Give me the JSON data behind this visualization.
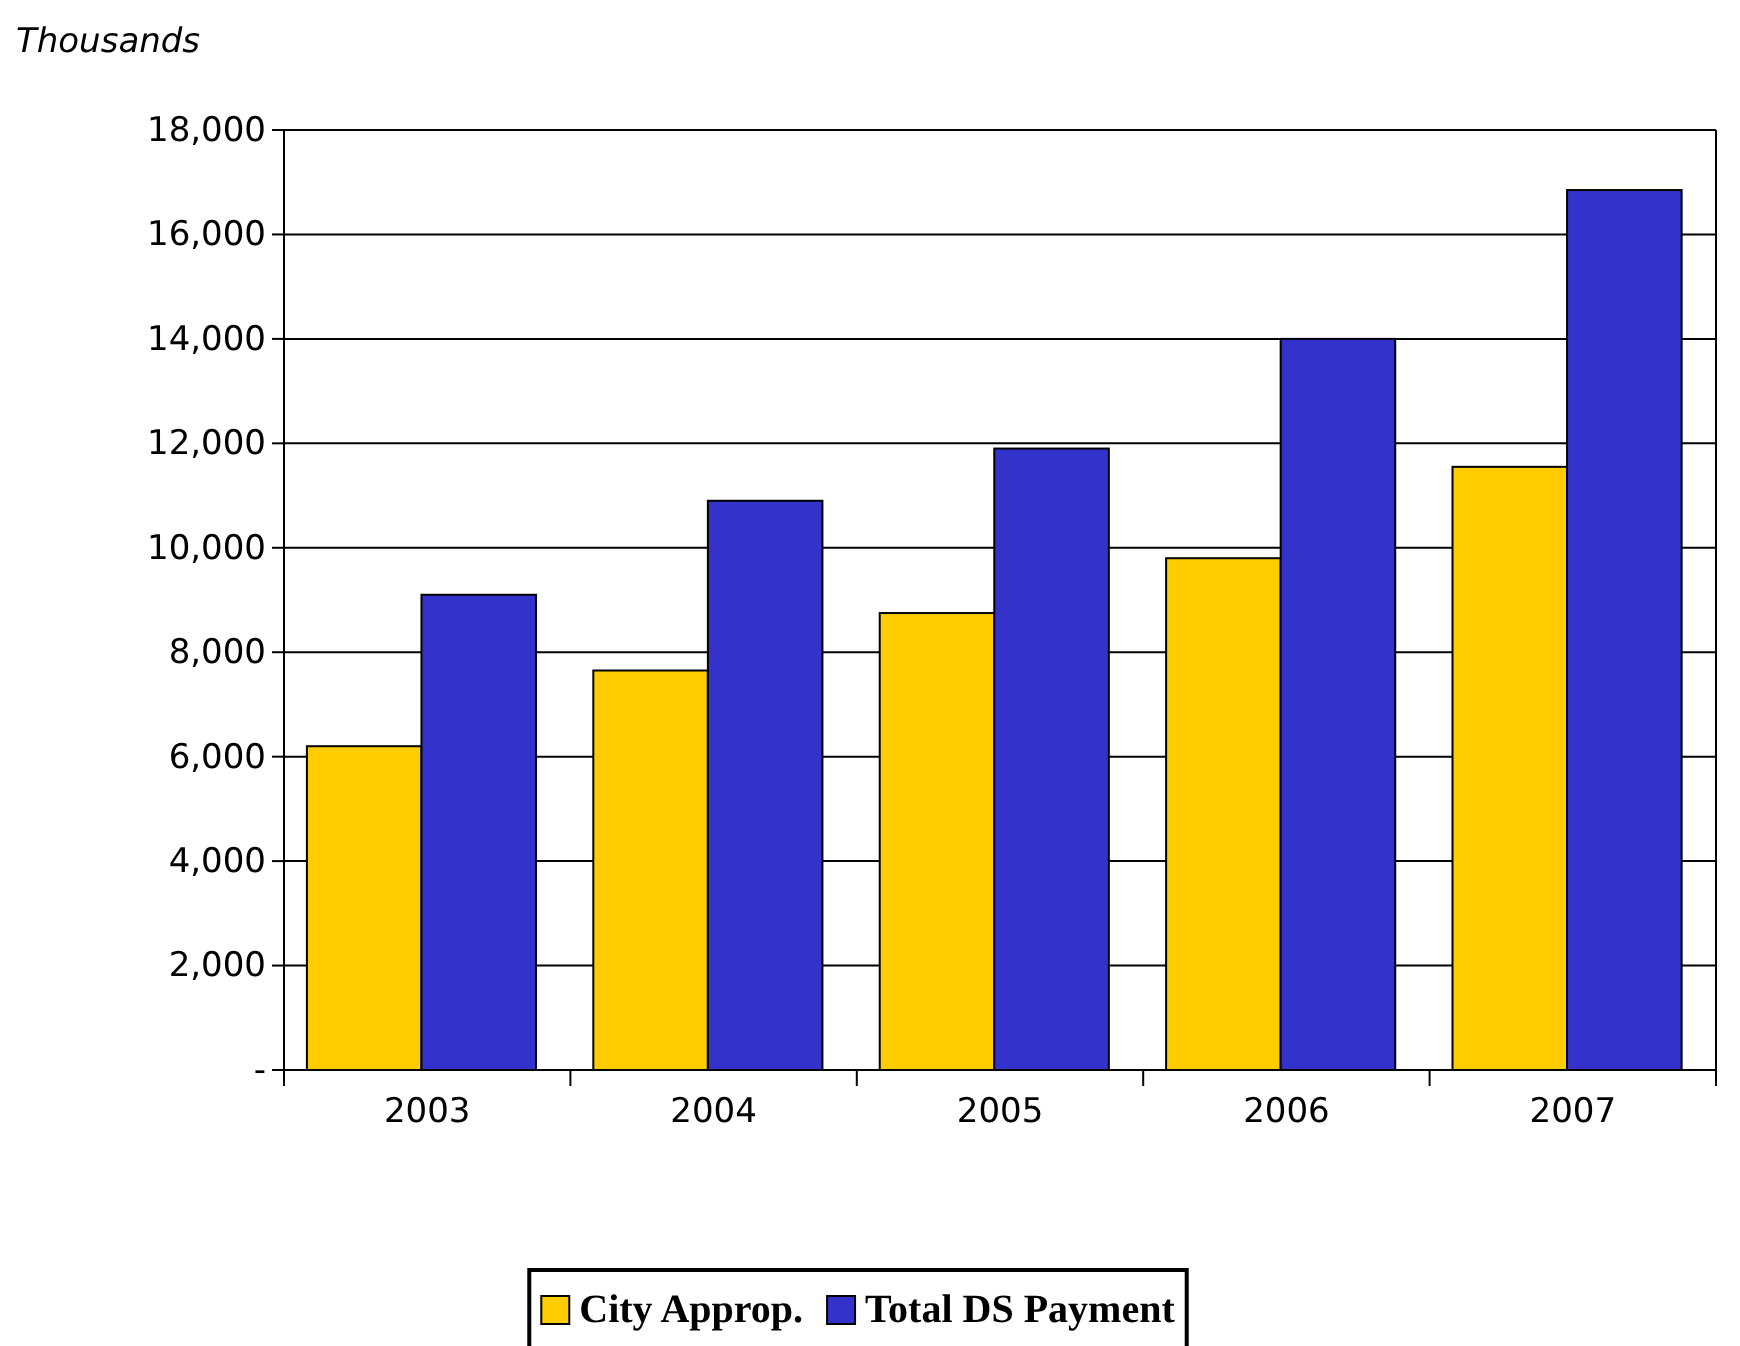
{
  "chart_data": {
    "type": "bar",
    "ylabel": "Thousands",
    "categories": [
      "2003",
      "2004",
      "2005",
      "2006",
      "2007"
    ],
    "series": [
      {
        "name": "City Approp.",
        "color": "#ffcc00",
        "values": [
          6200,
          7650,
          8750,
          9800,
          11550
        ]
      },
      {
        "name": "Total DS Payment",
        "color": "#3333cc",
        "values": [
          9100,
          10900,
          11900,
          14000,
          16850
        ]
      }
    ],
    "ylim": [
      0,
      18000
    ],
    "yticks": [
      {
        "value": 0,
        "label": "-"
      },
      {
        "value": 2000,
        "label": "2,000"
      },
      {
        "value": 4000,
        "label": "4,000"
      },
      {
        "value": 6000,
        "label": "6,000"
      },
      {
        "value": 8000,
        "label": "8,000"
      },
      {
        "value": 10000,
        "label": "10,000"
      },
      {
        "value": 12000,
        "label": "12,000"
      },
      {
        "value": 14000,
        "label": "14,000"
      },
      {
        "value": 16000,
        "label": "16,000"
      },
      {
        "value": 18000,
        "label": "18,000"
      }
    ],
    "grid": "y",
    "legend": "bottom"
  }
}
